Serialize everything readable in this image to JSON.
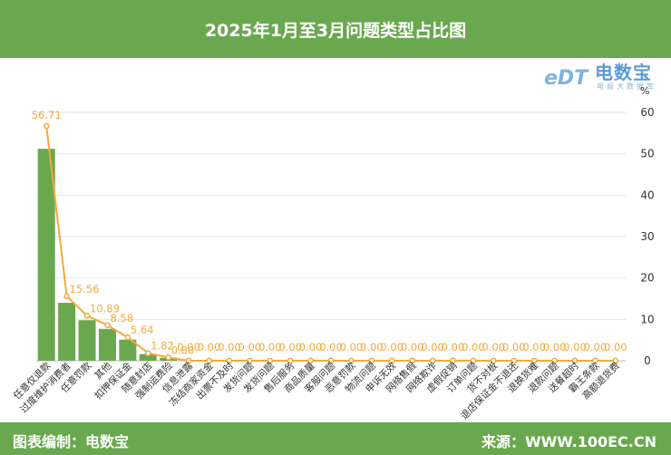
{
  "header": {
    "title": "2025年1月至3月问题类型占比图"
  },
  "footer": {
    "left": "图表编制：电数宝",
    "right": "来源：WWW.100EC.CN"
  },
  "logo": {
    "name": "电数宝",
    "sub": "电商大数据库",
    "mark": "eDT"
  },
  "colors": {
    "bar": "#6aa84f",
    "line": "#f4a93b",
    "label": "#f4a93b",
    "band": "#6aa84f"
  },
  "chart_data": {
    "type": "bar",
    "unit": "%",
    "ylim": [
      0,
      60
    ],
    "yticks": [
      0,
      10,
      20,
      30,
      40,
      50,
      60
    ],
    "categories": [
      "任意仅退款",
      "过度维护消费者",
      "任意罚款",
      "其他",
      "扣押保证金",
      "随意封店",
      "强制运费险",
      "信息泄露",
      "冻结商家资金",
      "出票不及时",
      "发货问题",
      "发货问题",
      "售后服务",
      "商品质量",
      "客服问题",
      "恶意罚款",
      "物流问题",
      "申诉无效",
      "网络售假",
      "网络欺诈",
      "虚假促销",
      "订单问题",
      "货不对板",
      "退店保证金不退还",
      "退换货难",
      "退款问题",
      "送餐超时",
      "霸王条款",
      "高额退货费"
    ],
    "bar_values": [
      51.2,
      14.0,
      9.8,
      7.7,
      5.1,
      1.6,
      0.7,
      0,
      0,
      0,
      0,
      0,
      0,
      0,
      0,
      0,
      0,
      0,
      0,
      0,
      0,
      0,
      0,
      0,
      0,
      0,
      0,
      0,
      0
    ],
    "line_values": [
      56.71,
      15.56,
      10.89,
      8.58,
      5.64,
      1.82,
      0.8,
      0,
      0,
      0,
      0,
      0,
      0,
      0,
      0,
      0,
      0,
      0,
      0,
      0,
      0,
      0,
      0,
      0,
      0,
      0,
      0,
      0,
      0
    ],
    "data_labels": [
      "56.71",
      "15.56",
      "10.89",
      "8.58",
      "5.64",
      "1.82",
      "0.80",
      "0.00",
      "0.00",
      "0.00",
      "0.00",
      "0.00",
      "0.00",
      "0.00",
      "0.00",
      "0.00",
      "0.00",
      "0.00",
      "0.00",
      "0.00",
      "0.00",
      "0.00",
      "0.00",
      "0.00",
      "0.00",
      "0.00",
      "0.00",
      "0.00",
      "0.00"
    ],
    "grid": true,
    "y_axis_position": "right"
  }
}
